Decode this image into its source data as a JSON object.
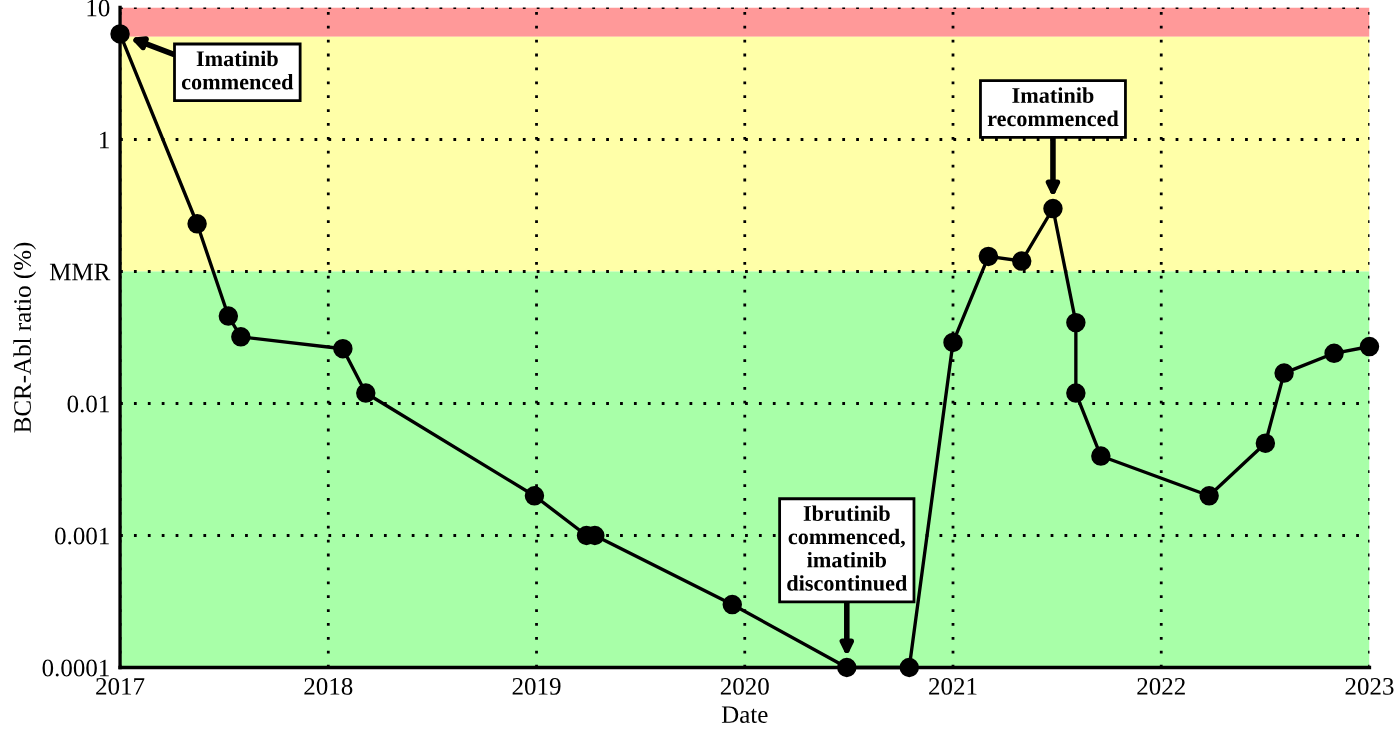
{
  "chart_data": {
    "type": "line",
    "xlabel": "Date",
    "ylabel": "BCR-Abl ratio (%)",
    "log": "y",
    "xlim": [
      2017,
      2023
    ],
    "xticks": [
      2017,
      2018,
      2019,
      2020,
      2021,
      2022,
      2023
    ],
    "ylim": [
      0.0001,
      10
    ],
    "yticks": [
      0.0001,
      0.001,
      0.01,
      {
        "value": 0.1,
        "label": "MMR"
      },
      1,
      10
    ],
    "grid": true,
    "marker": "circle",
    "line_style": "solid",
    "series": [
      {
        "color": "#000000",
        "x": [
          2017.0,
          2017.37,
          2017.52,
          2017.58,
          2018.07,
          2018.18,
          2018.99,
          2019.24,
          2019.28,
          2019.94,
          2020.49,
          2020.79,
          2021.0,
          2021.17,
          2021.33,
          2021.48,
          2021.59,
          2021.59,
          2021.71,
          2022.23,
          2022.5,
          2022.59,
          2022.83,
          2023.0
        ],
        "values": [
          6.3,
          0.23,
          0.046,
          0.032,
          0.026,
          0.012,
          0.002,
          0.001,
          0.001,
          0.0003,
          0.0001,
          0.0001,
          0.029,
          0.13,
          0.12,
          0.3,
          0.041,
          0.012,
          0.004,
          0.002,
          0.005,
          0.017,
          0.024,
          0.027
        ]
      }
    ],
    "bands": [
      {
        "axis": "y",
        "from": 6,
        "to": 10,
        "color": "#ff9999"
      },
      {
        "axis": "y",
        "from": 0.1,
        "to": 6,
        "color": "#ffffa8"
      },
      {
        "axis": "y",
        "from": 0.0001,
        "to": 0.1,
        "color": "#a8ffa8"
      }
    ],
    "annotations": [
      {
        "text": "Imatinib\ncommenced",
        "x": 2017.0,
        "y": 6.3
      },
      {
        "text": "Ibrutinib\ncommenced,\nimatinib\ndiscontinued",
        "x": 2020.49,
        "y": 0.0001
      },
      {
        "text": "Imatinib\nrecommenced",
        "x": 2021.48,
        "y": 0.3
      }
    ]
  }
}
